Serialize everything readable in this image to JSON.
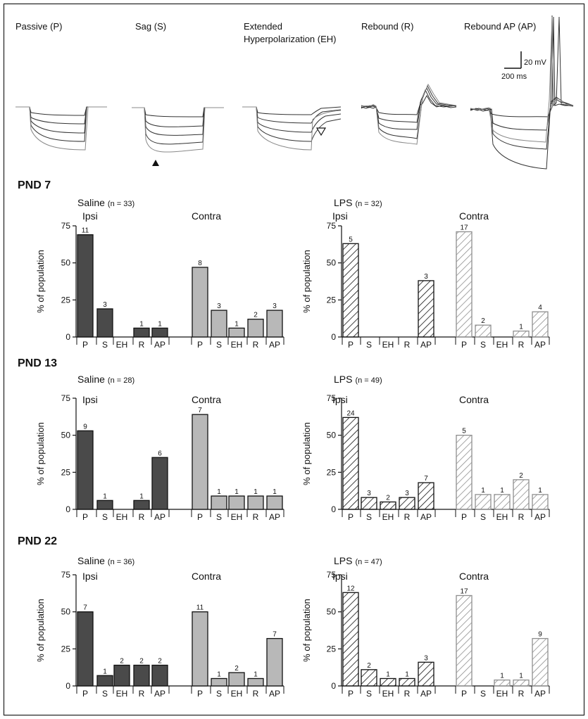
{
  "colors": {
    "saline_ipsi": "#4a4a4a",
    "saline_contra": "#b8b8b8",
    "lps_ipsi": "#111111",
    "lps_contra": "#8f8f8f",
    "trace_dark": "#333333",
    "trace_light": "#888888"
  },
  "traces": {
    "labels": [
      "Passive (P)",
      "Sag (S)",
      "Extended",
      "Hyperpolarization (EH)",
      "Rebound (R)",
      "Rebound AP (AP)"
    ],
    "scale_v": "20 mV",
    "scale_t": "200 ms"
  },
  "chart_data": {
    "type": "bar",
    "ylabel": "% of population",
    "ylim": [
      0,
      75
    ],
    "yticks": [
      "0",
      "25",
      "50",
      "75"
    ],
    "categories": [
      "P",
      "S",
      "EH",
      "R",
      "AP"
    ],
    "sides": [
      "Ipsi",
      "Contra"
    ],
    "rows": [
      {
        "title": "PND 7",
        "panels": [
          {
            "treatment": "Saline",
            "n": "(n = 33)",
            "ipsi": {
              "values": [
                69,
                19,
                0,
                6,
                6
              ],
              "counts": [
                "11",
                "3",
                "",
                "1",
                "1"
              ]
            },
            "contra": {
              "values": [
                47,
                18,
                6,
                12,
                18
              ],
              "counts": [
                "8",
                "3",
                "1",
                "2",
                "3"
              ]
            }
          },
          {
            "treatment": "LPS",
            "n": "(n = 32)",
            "ipsi": {
              "values": [
                63,
                0,
                0,
                0,
                38
              ],
              "counts": [
                "5",
                "",
                "",
                "",
                "3"
              ]
            },
            "contra": {
              "values": [
                71,
                8,
                0,
                4,
                17
              ],
              "counts": [
                "17",
                "2",
                "",
                "1",
                "4"
              ]
            }
          }
        ]
      },
      {
        "title": "PND 13",
        "panels": [
          {
            "treatment": "Saline",
            "n": "(n = 28)",
            "ipsi": {
              "values": [
                53,
                6,
                0,
                6,
                35
              ],
              "counts": [
                "9",
                "1",
                "",
                "1",
                "6"
              ]
            },
            "contra": {
              "values": [
                64,
                9,
                9,
                9,
                9
              ],
              "counts": [
                "7",
                "1",
                "1",
                "1",
                "1"
              ]
            }
          },
          {
            "treatment": "LPS",
            "n": "(n = 49)",
            "ipsi": {
              "values": [
                62,
                8,
                5,
                8,
                18
              ],
              "counts": [
                "24",
                "3",
                "2",
                "3",
                "7"
              ]
            },
            "contra": {
              "values": [
                50,
                10,
                10,
                20,
                10
              ],
              "counts": [
                "5",
                "1",
                "1",
                "2",
                "1"
              ]
            }
          }
        ]
      },
      {
        "title": "PND 22",
        "panels": [
          {
            "treatment": "Saline",
            "n": "(n = 36)",
            "ipsi": {
              "values": [
                50,
                7,
                14,
                14,
                14
              ],
              "counts": [
                "7",
                "1",
                "2",
                "2",
                "2"
              ]
            },
            "contra": {
              "values": [
                50,
                5,
                9,
                5,
                32
              ],
              "counts": [
                "11",
                "1",
                "2",
                "1",
                "7"
              ]
            }
          },
          {
            "treatment": "LPS",
            "n": "(n = 47)",
            "ipsi": {
              "values": [
                63,
                11,
                5,
                5,
                16
              ],
              "counts": [
                "12",
                "2",
                "1",
                "1",
                "3"
              ]
            },
            "contra": {
              "values": [
                61,
                0,
                4,
                4,
                32
              ],
              "counts": [
                "17",
                "",
                "1",
                "1",
                "9"
              ]
            }
          }
        ]
      }
    ]
  }
}
